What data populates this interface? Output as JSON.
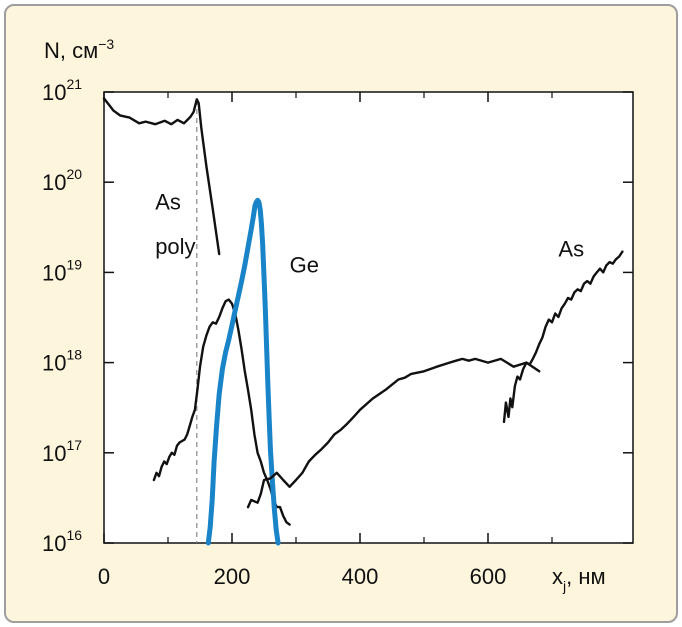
{
  "chart_data": {
    "type": "line",
    "ylabel": "N, см",
    "ylabel_exp": "−3",
    "xlabel_main": "x",
    "xlabel_sub": "j",
    "xlabel_unit": ", нм",
    "xlim": [
      0,
      820
    ],
    "y_scale": "log",
    "ylim": [
      1e+16,
      1e+21
    ],
    "x_ticks": [
      "0",
      "200",
      "400",
      "600"
    ],
    "x_tick_values": [
      0,
      200,
      400,
      600
    ],
    "y_ticks": [
      {
        "base": "10",
        "exp": "16",
        "value": 16
      },
      {
        "base": "10",
        "exp": "17",
        "value": 17
      },
      {
        "base": "10",
        "exp": "18",
        "value": 18
      },
      {
        "base": "10",
        "exp": "19",
        "value": 19
      },
      {
        "base": "10",
        "exp": "20",
        "value": 20
      },
      {
        "base": "10",
        "exp": "21",
        "value": 21
      }
    ],
    "grid": false,
    "annotations": [
      {
        "text": "As",
        "x": 80,
        "y": 5e+19
      },
      {
        "text": "poly",
        "x": 80,
        "y": 1.6e+19
      },
      {
        "text": "Ge",
        "x": 290,
        "y": 1e+19
      },
      {
        "text": "As",
        "x": 710,
        "y": 1.5e+19
      }
    ],
    "interface_line_x": 145,
    "series": [
      {
        "label": "As",
        "color": "#111111",
        "x": [
          0,
          15,
          25,
          40,
          55,
          65,
          80,
          95,
          105,
          115,
          125,
          135,
          140,
          145,
          148,
          152,
          160,
          170,
          180
        ],
        "y": [
          8.5e+20,
          6.2e+20,
          5.5e+20,
          5.2e+20,
          4.5e+20,
          4.7e+20,
          4.4e+20,
          4.8e+20,
          4.4e+20,
          4.9e+20,
          4.5e+20,
          5.3e+20,
          6e+20,
          8.3e+20,
          7.5e+20,
          4e+20,
          1.5e+20,
          5e+19,
          1.6e+19
        ]
      },
      {
        "label": "Ge",
        "color": "#111111",
        "x": [
          78,
          82,
          86,
          90,
          94,
          98,
          102,
          106,
          110,
          114,
          118,
          122,
          126,
          130,
          134,
          138,
          142,
          146,
          150,
          155,
          160,
          165,
          170,
          175,
          180,
          185,
          190,
          195,
          200,
          205,
          210,
          215,
          220,
          225,
          230,
          235,
          240,
          245,
          250,
          255,
          260,
          265,
          270,
          275,
          280,
          285,
          290
        ],
        "y": [
          5e+16,
          6e+16,
          5.5e+16,
          7e+16,
          8e+16,
          7.5e+16,
          9e+16,
          1e+17,
          9.5e+16,
          1.2e+17,
          1.3e+17,
          1.35e+17,
          1.4e+17,
          1.6e+17,
          2e+17,
          2.5e+17,
          3e+17,
          5e+17,
          9e+17,
          1.5e+18,
          2e+18,
          2.5e+18,
          2.8e+18,
          2.7e+18,
          3.2e+18,
          4e+18,
          4.8e+18,
          5e+18,
          4.5e+18,
          3.5e+18,
          2.3e+18,
          1.4e+18,
          8e+17,
          5e+17,
          3e+17,
          1.6e+17,
          1e+17,
          8e+16,
          6e+16,
          5e+16,
          4e+16,
          3e+16,
          2.5e+16,
          2.5e+16,
          2e+16,
          1.7e+16,
          1.6e+16
        ]
      },
      {
        "label": "Ge",
        "color": "#1a84c8",
        "x": [
          163,
          166,
          169,
          172,
          176,
          180,
          185,
          190,
          195,
          200,
          205,
          210,
          215,
          220,
          225,
          230,
          233,
          236,
          238,
          240,
          242,
          244,
          246,
          248,
          250,
          252,
          254,
          256,
          258,
          260,
          263,
          266,
          269,
          272
        ],
        "y": [
          1e+16,
          1.5e+16,
          3e+16,
          8e+16,
          2e+17,
          4.5e+17,
          8.5e+17,
          1.3e+18,
          1.8e+18,
          2.6e+18,
          3.8e+18,
          5.5e+18,
          8e+18,
          1.2e+19,
          1.9e+19,
          3e+19,
          4e+19,
          5.5e+19,
          6e+19,
          6.3e+19,
          6e+19,
          5e+19,
          3.5e+19,
          2e+19,
          9e+18,
          4e+18,
          1.5e+18,
          6e+17,
          2.5e+17,
          1.1e+17,
          5e+16,
          2.5e+16,
          1.4e+16,
          1e+16
        ]
      },
      {
        "label": "As",
        "color": "#111111",
        "x": [
          225,
          230,
          240,
          245,
          250,
          260,
          270,
          280,
          290,
          300,
          310,
          320,
          330,
          340,
          350,
          360,
          370,
          380,
          390,
          400,
          420,
          440,
          460,
          470,
          480,
          500,
          520,
          540,
          550,
          560,
          570,
          580,
          600,
          620,
          640,
          660,
          680
        ],
        "y": [
          2.5e+16,
          3e+16,
          2.8e+16,
          3.5e+16,
          5e+16,
          5.2e+16,
          6e+16,
          5e+16,
          4.2e+16,
          5e+16,
          6e+16,
          8e+16,
          9.5e+16,
          1.1e+17,
          1.3e+17,
          1.6e+17,
          1.8e+17,
          2.1e+17,
          2.5e+17,
          3e+17,
          4e+17,
          5e+17,
          6.5e+17,
          6.8e+17,
          7.5e+17,
          8e+17,
          9e+17,
          1e+18,
          1.05e+18,
          1.1e+18,
          1.05e+18,
          1.1e+18,
          1e+18,
          1.1e+18,
          9e+17,
          1e+18,
          8e+17
        ]
      },
      {
        "label": "As",
        "color": "#111111",
        "x": [
          625,
          628,
          632,
          635,
          638,
          642,
          646,
          650,
          655,
          660,
          665,
          670,
          675,
          680,
          685,
          690,
          695,
          700,
          705,
          710,
          715,
          720,
          725,
          730,
          735,
          740,
          745,
          750,
          755,
          760,
          765,
          770,
          775,
          780,
          785,
          790,
          795,
          800,
          805,
          810
        ],
        "y": [
          2.2e+17,
          3.6e+17,
          2.5e+17,
          4e+17,
          3.2e+17,
          5.5e+17,
          7e+17,
          6.5e+17,
          8.5e+17,
          1e+18,
          9.5e+17,
          1.1e+18,
          1.3e+18,
          1.6e+18,
          1.9e+18,
          2.5e+18,
          3e+18,
          2.8e+18,
          3.5e+18,
          3.2e+18,
          4e+18,
          4.5e+18,
          5.2e+18,
          5e+18,
          6e+18,
          6.5e+18,
          6.2e+18,
          7.5e+18,
          8e+18,
          7.5e+18,
          9e+18,
          1e+19,
          1.1e+19,
          1e+19,
          1.2e+19,
          1.3e+19,
          1.25e+19,
          1.4e+19,
          1.5e+19,
          1.7e+19
        ]
      }
    ]
  }
}
